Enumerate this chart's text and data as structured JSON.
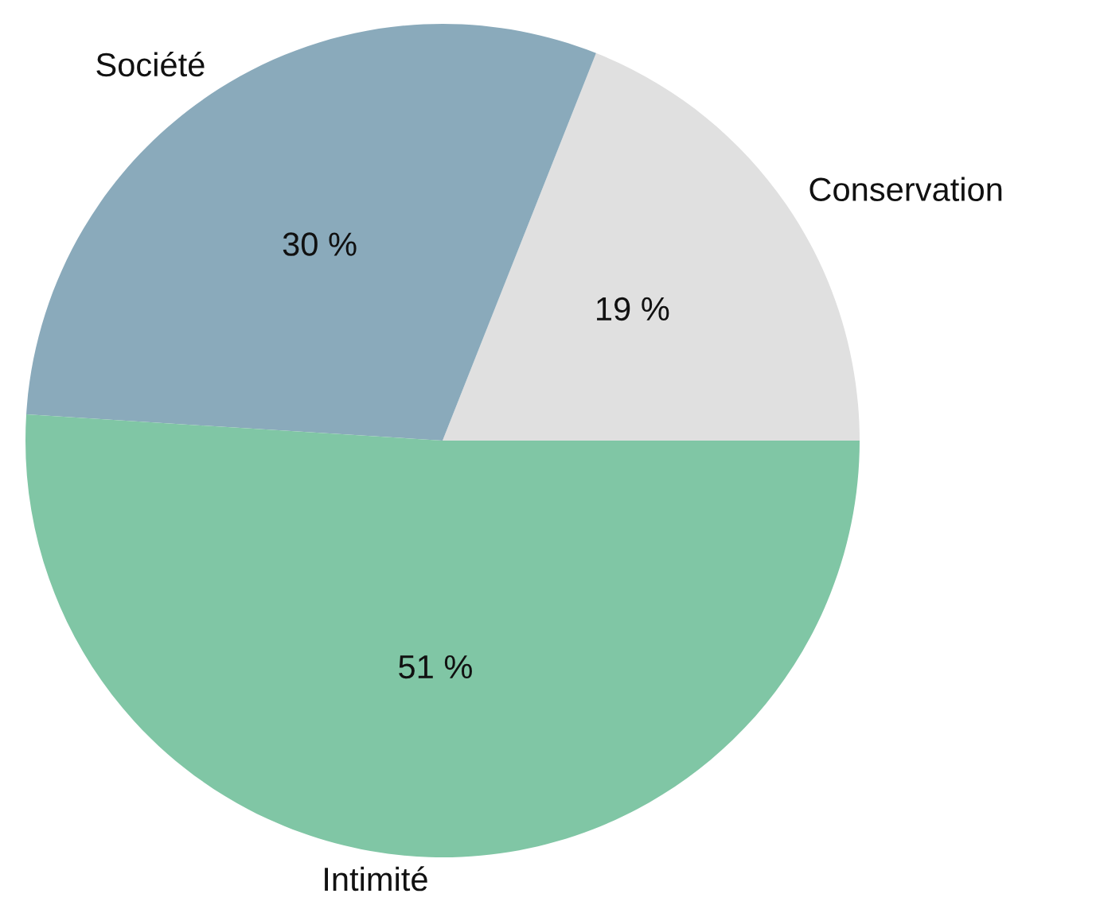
{
  "chart_data": {
    "type": "pie",
    "categories": [
      "Conservation",
      "Société",
      "Intimité"
    ],
    "values": [
      19,
      30,
      51
    ],
    "colors": [
      "#e0e0e0",
      "#8aaabb",
      "#80c6a5"
    ],
    "value_labels": [
      "19 %",
      "30 %",
      "51 %"
    ],
    "legend": false
  }
}
